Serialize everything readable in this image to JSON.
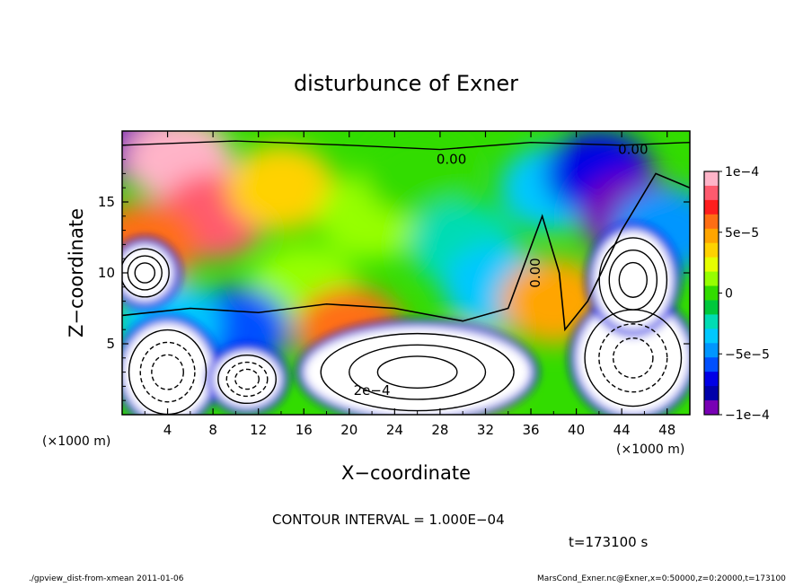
{
  "chart_data": {
    "type": "heatmap",
    "title": "disturbunce of Exner",
    "xlabel": "X−coordinate",
    "ylabel": "Z−coordinate",
    "x_unit_left": "(×1000 m)",
    "x_unit_right": "(×1000 m)",
    "xlim": [
      0,
      50
    ],
    "ylim": [
      0,
      20
    ],
    "x_ticks": [
      4,
      8,
      12,
      16,
      20,
      24,
      28,
      32,
      36,
      40,
      44,
      48
    ],
    "y_ticks": [
      5,
      10,
      15
    ],
    "colorbar": {
      "range": [
        -0.0001,
        0.0001
      ],
      "tick_labels": [
        "1e−4",
        "5e−5",
        "0",
        "−5e−5",
        "−1e−4"
      ],
      "colors": [
        "#ffb4c8",
        "#ff5a6e",
        "#ff1e1e",
        "#ff6e14",
        "#ffa500",
        "#ffd200",
        "#e6ff00",
        "#96ff00",
        "#32dc00",
        "#00c83c",
        "#00dcb4",
        "#00c8ff",
        "#0096ff",
        "#0050ff",
        "#0000e6",
        "#0000aa",
        "#7800b4"
      ]
    },
    "contour_labels": [
      "0.00",
      "0.00",
      "0.00",
      "2e−4"
    ],
    "contour_interval_text": "CONTOUR INTERVAL = 1.000E−04",
    "time_text": "t=173100 s",
    "regions": [
      {
        "x": 0,
        "y": 19.5,
        "v": -9e-05
      },
      {
        "x": 5,
        "y": 18,
        "v": 9e-05
      },
      {
        "x": 8,
        "y": 14,
        "v": 8e-05
      },
      {
        "x": 2,
        "y": 12,
        "v": 6e-05
      },
      {
        "x": 14,
        "y": 16,
        "v": 4e-05
      },
      {
        "x": 16,
        "y": 9,
        "v": 1e-05
      },
      {
        "x": 22,
        "y": 14,
        "v": 1e-05
      },
      {
        "x": 26,
        "y": 17,
        "v": 0.0
      },
      {
        "x": 30,
        "y": 12,
        "v": -2e-05
      },
      {
        "x": 33,
        "y": 9,
        "v": -3e-05
      },
      {
        "x": 38,
        "y": 16,
        "v": -4e-05
      },
      {
        "x": 42,
        "y": 17,
        "v": -7e-05
      },
      {
        "x": 45,
        "y": 14,
        "v": -0.0001
      },
      {
        "x": 48,
        "y": 13,
        "v": -5e-05
      },
      {
        "x": 38,
        "y": 8,
        "v": 5e-05
      },
      {
        "x": 10,
        "y": 6,
        "v": -6e-05
      },
      {
        "x": 4,
        "y": 6.5,
        "v": -4e-05
      },
      {
        "x": 20,
        "y": 6,
        "v": 6e-05
      },
      {
        "x": 30,
        "y": 3,
        "v": 4e-05
      }
    ],
    "saturated_white_regions": [
      {
        "cx": 4,
        "cy": 3,
        "rx": 4,
        "ry": 3.5
      },
      {
        "cx": 2,
        "cy": 10,
        "rx": 2.5,
        "ry": 2
      },
      {
        "cx": 11,
        "cy": 2.5,
        "rx": 3,
        "ry": 2
      },
      {
        "cx": 26,
        "cy": 3,
        "rx": 10,
        "ry": 3.2
      },
      {
        "cx": 45,
        "cy": 4,
        "rx": 5,
        "ry": 4
      },
      {
        "cx": 45,
        "cy": 9.5,
        "rx": 3.5,
        "ry": 3.5
      }
    ]
  },
  "footer": {
    "left": "./gpview_dist-from-xmean  2011-01-06",
    "right": "MarsCond_Exner.nc@Exner,x=0:50000,z=0:20000,t=173100"
  }
}
